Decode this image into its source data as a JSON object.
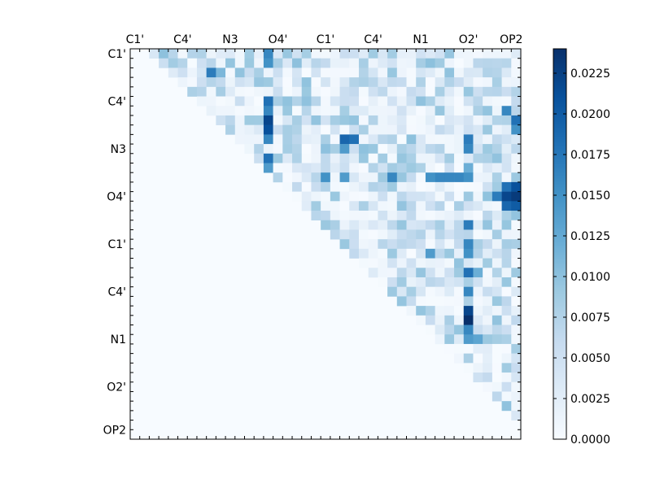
{
  "chart_data": {
    "type": "heatmap",
    "title": "",
    "xlabel": "",
    "ylabel": "",
    "n": 41,
    "x_tick_labels": [
      "C1'",
      "C4'",
      "N3",
      "O4'",
      "C1'",
      "C4'",
      "N1",
      "O2'",
      "OP2"
    ],
    "y_tick_labels": [
      "C1'",
      "C4'",
      "N3",
      "O4'",
      "C1'",
      "C4'",
      "N1",
      "O2'",
      "OP2"
    ],
    "tick_positions": [
      0.5,
      5.5,
      10.5,
      15.5,
      20.5,
      25.5,
      30.5,
      35.5,
      40
    ],
    "colormap": "Blues",
    "colorbar": {
      "min": 0.0,
      "max": 0.024,
      "ticks": [
        0.0,
        0.0025,
        0.005,
        0.0075,
        0.01,
        0.0125,
        0.015,
        0.0175,
        0.02,
        0.0225
      ],
      "tick_labels": [
        "0.0000",
        "0.0025",
        "0.0050",
        "0.0075",
        "0.0100",
        "0.0125",
        "0.0150",
        "0.0175",
        "0.0200",
        "0.0225"
      ]
    },
    "lower_triangle_value": 0.0,
    "highlights": [
      {
        "row": 0,
        "col": 14,
        "value": 0.016
      },
      {
        "row": 1,
        "col": 14,
        "value": 0.015
      },
      {
        "row": 2,
        "col": 8,
        "value": 0.017
      },
      {
        "row": 2,
        "col": 9,
        "value": 0.011
      },
      {
        "row": 3,
        "col": 14,
        "value": 0.009
      },
      {
        "row": 5,
        "col": 14,
        "value": 0.018
      },
      {
        "row": 6,
        "col": 14,
        "value": 0.016
      },
      {
        "row": 7,
        "col": 14,
        "value": 0.022
      },
      {
        "row": 8,
        "col": 14,
        "value": 0.021
      },
      {
        "row": 9,
        "col": 14,
        "value": 0.016
      },
      {
        "row": 11,
        "col": 14,
        "value": 0.018
      },
      {
        "row": 12,
        "col": 14,
        "value": 0.014
      },
      {
        "row": 9,
        "col": 22,
        "value": 0.019
      },
      {
        "row": 9,
        "col": 23,
        "value": 0.018
      },
      {
        "row": 10,
        "col": 22,
        "value": 0.014
      },
      {
        "row": 9,
        "col": 35,
        "value": 0.017
      },
      {
        "row": 10,
        "col": 35,
        "value": 0.016
      },
      {
        "row": 13,
        "col": 20,
        "value": 0.015
      },
      {
        "row": 13,
        "col": 22,
        "value": 0.014
      },
      {
        "row": 13,
        "col": 27,
        "value": 0.016
      },
      {
        "row": 13,
        "col": 31,
        "value": 0.015
      },
      {
        "row": 13,
        "col": 32,
        "value": 0.016
      },
      {
        "row": 13,
        "col": 33,
        "value": 0.016
      },
      {
        "row": 13,
        "col": 34,
        "value": 0.016
      },
      {
        "row": 13,
        "col": 35,
        "value": 0.015
      },
      {
        "row": 14,
        "col": 39,
        "value": 0.018
      },
      {
        "row": 14,
        "col": 40,
        "value": 0.021
      },
      {
        "row": 15,
        "col": 40,
        "value": 0.023
      },
      {
        "row": 15,
        "col": 39,
        "value": 0.022
      },
      {
        "row": 15,
        "col": 38,
        "value": 0.017
      },
      {
        "row": 16,
        "col": 39,
        "value": 0.019
      },
      {
        "row": 16,
        "col": 40,
        "value": 0.02
      },
      {
        "row": 18,
        "col": 35,
        "value": 0.017
      },
      {
        "row": 20,
        "col": 35,
        "value": 0.016
      },
      {
        "row": 21,
        "col": 35,
        "value": 0.015
      },
      {
        "row": 21,
        "col": 31,
        "value": 0.014
      },
      {
        "row": 23,
        "col": 35,
        "value": 0.018
      },
      {
        "row": 25,
        "col": 35,
        "value": 0.016
      },
      {
        "row": 27,
        "col": 35,
        "value": 0.022
      },
      {
        "row": 28,
        "col": 35,
        "value": 0.024
      },
      {
        "row": 29,
        "col": 35,
        "value": 0.016
      },
      {
        "row": 30,
        "col": 35,
        "value": 0.014
      },
      {
        "row": 30,
        "col": 36,
        "value": 0.013
      },
      {
        "row": 23,
        "col": 36,
        "value": 0.012
      },
      {
        "row": 6,
        "col": 39,
        "value": 0.016
      },
      {
        "row": 7,
        "col": 40,
        "value": 0.018
      },
      {
        "row": 8,
        "col": 40,
        "value": 0.015
      },
      {
        "row": 12,
        "col": 35,
        "value": 0.012
      }
    ]
  }
}
